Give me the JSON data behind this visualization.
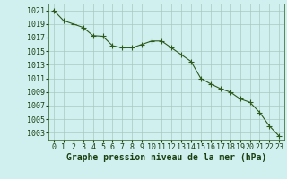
{
  "x": [
    0,
    1,
    2,
    3,
    4,
    5,
    6,
    7,
    8,
    9,
    10,
    11,
    12,
    13,
    14,
    15,
    16,
    17,
    18,
    19,
    20,
    21,
    22,
    23
  ],
  "y": [
    1021,
    1019.5,
    1019,
    1018.5,
    1017.3,
    1017.2,
    1015.8,
    1015.5,
    1015.5,
    1016,
    1016.5,
    1016.5,
    1015.5,
    1014.5,
    1013.5,
    1011,
    1010.2,
    1009.5,
    1009,
    1008,
    1007.5,
    1006,
    1004,
    1002.5
  ],
  "line_color": "#2d5a1b",
  "marker": "+",
  "markersize": 4,
  "linewidth": 0.8,
  "bg_color": "#d0f0f0",
  "grid_color": "#a8c8c0",
  "plot_bg_color": "#d0f0f0",
  "title": "Graphe pression niveau de la mer (hPa)",
  "ylabel_ticks": [
    1003,
    1005,
    1007,
    1009,
    1011,
    1013,
    1015,
    1017,
    1019,
    1021
  ],
  "xlim": [
    -0.5,
    23.5
  ],
  "ylim": [
    1002,
    1022
  ],
  "xlabel_ticks": [
    0,
    1,
    2,
    3,
    4,
    5,
    6,
    7,
    8,
    9,
    10,
    11,
    12,
    13,
    14,
    15,
    16,
    17,
    18,
    19,
    20,
    21,
    22,
    23
  ],
  "tick_fontsize": 6,
  "title_fontsize": 7,
  "title_color": "#1a4010",
  "tick_color": "#1a4010",
  "spine_color": "#2d5a1b"
}
